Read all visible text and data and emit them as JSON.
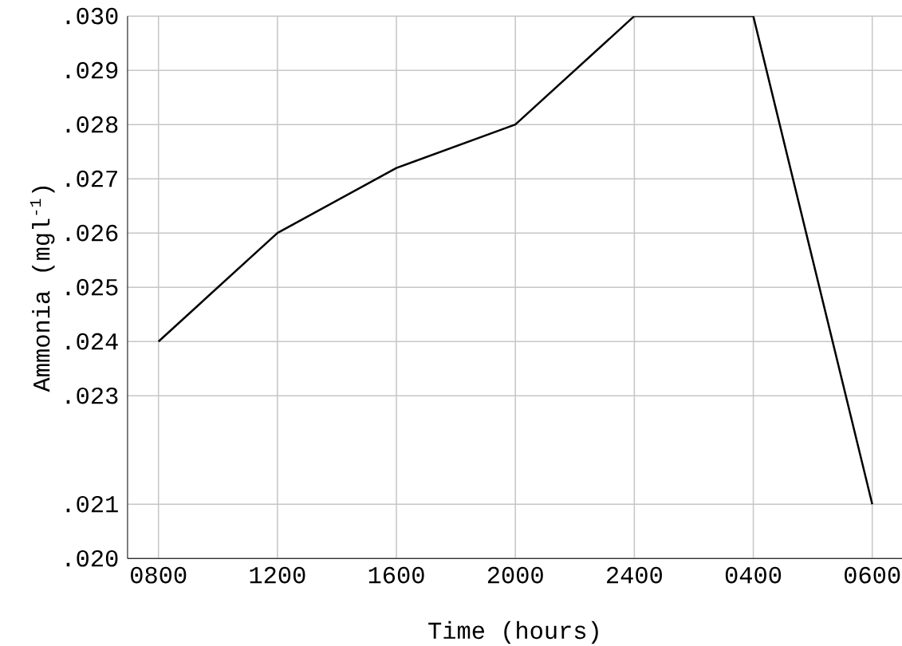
{
  "chart_data": {
    "type": "line",
    "xlabel": "Time (hours)",
    "ylabel": "Ammonia (mgl$^{-1}$)",
    "categories": [
      "0800",
      "1200",
      "1600",
      "2000",
      "2400",
      "0400",
      "0600"
    ],
    "series": [
      {
        "color": "#000000",
        "values": [
          0.024,
          0.026,
          0.0272,
          0.028,
          0.03,
          0.03,
          0.021
        ]
      }
    ],
    "ylim": [
      0.02,
      0.03
    ],
    "yticks": [
      {
        "value": 0.03,
        "label": ".030"
      },
      {
        "value": 0.029,
        "label": ".029"
      },
      {
        "value": 0.028,
        "label": ".028"
      },
      {
        "value": 0.027,
        "label": ".027"
      },
      {
        "value": 0.026,
        "label": ".026"
      },
      {
        "value": 0.025,
        "label": ".025"
      },
      {
        "value": 0.024,
        "label": ".024"
      },
      {
        "value": 0.023,
        "label": ".023"
      },
      {
        "value": 0.021,
        "label": ".021"
      },
      {
        "value": 0.02,
        "label": ".020"
      }
    ],
    "grid": true,
    "marker": "none",
    "line_style": "solid"
  }
}
